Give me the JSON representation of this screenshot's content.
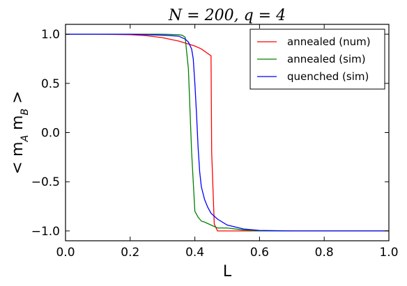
{
  "chart_data": {
    "type": "line",
    "title": "N = 200, q = 4",
    "xlabel": "L",
    "ylabel": "< m_A m_B >",
    "xlim": [
      0.0,
      1.0
    ],
    "ylim": [
      -1.1,
      1.1
    ],
    "xticks": [
      "0.0",
      "0.2",
      "0.4",
      "0.6",
      "0.8",
      "1.0"
    ],
    "yticks": [
      "1.0",
      "0.5",
      "0.0",
      "−0.5",
      "−1.0"
    ],
    "legend_position": "top-right",
    "series": [
      {
        "name": "annealed (num)",
        "color": "#ff0000",
        "x": [
          0.0,
          0.05,
          0.1,
          0.15,
          0.2,
          0.25,
          0.3,
          0.35,
          0.4,
          0.42,
          0.45,
          0.452,
          0.46,
          0.47,
          0.5,
          0.55,
          0.6,
          0.7,
          0.8,
          0.9,
          1.0
        ],
        "y": [
          1.0,
          1.0,
          1.0,
          0.998,
          0.995,
          0.985,
          0.965,
          0.93,
          0.88,
          0.85,
          0.78,
          -0.2,
          -0.93,
          -1.0,
          -1.0,
          -1.0,
          -1.0,
          -1.0,
          -1.0,
          -1.0,
          -1.0
        ]
      },
      {
        "name": "annealed (sim)",
        "color": "#008000",
        "x": [
          0.0,
          0.1,
          0.2,
          0.3,
          0.35,
          0.36,
          0.37,
          0.38,
          0.39,
          0.4,
          0.41,
          0.42,
          0.43,
          0.45,
          0.47,
          0.5,
          0.55,
          0.6,
          0.7,
          0.8,
          0.9,
          1.0
        ],
        "y": [
          1.0,
          1.0,
          1.0,
          1.0,
          0.995,
          0.99,
          0.97,
          0.65,
          -0.2,
          -0.8,
          -0.86,
          -0.9,
          -0.91,
          -0.94,
          -0.97,
          -0.97,
          -0.99,
          -1.0,
          -1.0,
          -1.0,
          -1.0,
          -1.0
        ]
      },
      {
        "name": "quenched (sim)",
        "color": "#0000ff",
        "x": [
          0.0,
          0.1,
          0.2,
          0.3,
          0.35,
          0.37,
          0.38,
          0.39,
          0.395,
          0.4,
          0.405,
          0.41,
          0.415,
          0.42,
          0.43,
          0.44,
          0.45,
          0.47,
          0.5,
          0.55,
          0.6,
          0.7,
          0.8,
          0.9,
          1.0
        ],
        "y": [
          1.0,
          1.0,
          1.0,
          0.99,
          0.98,
          0.95,
          0.92,
          0.85,
          0.75,
          0.5,
          0.2,
          -0.15,
          -0.4,
          -0.55,
          -0.68,
          -0.76,
          -0.82,
          -0.88,
          -0.94,
          -0.98,
          -0.995,
          -1.0,
          -1.0,
          -1.0,
          -1.0
        ]
      }
    ]
  }
}
